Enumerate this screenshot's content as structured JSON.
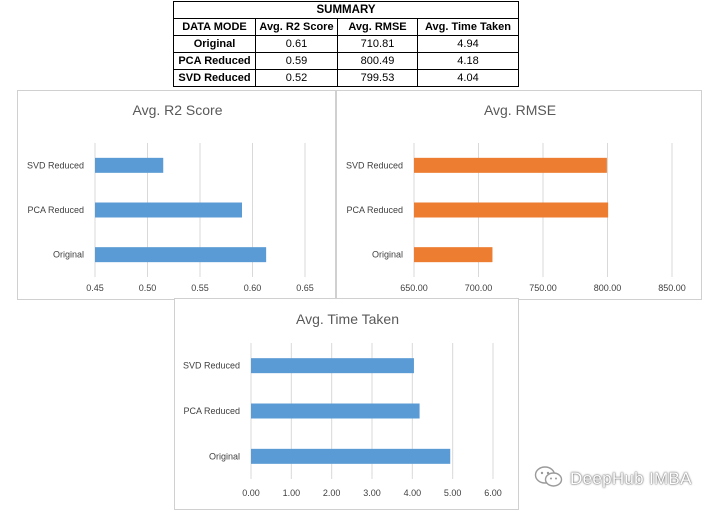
{
  "summary": {
    "title": "SUMMARY",
    "headers": [
      "DATA MODE",
      "Avg. R2 Score",
      "Avg. RMSE",
      "Avg. Time Taken"
    ],
    "rows": [
      [
        "Original",
        "0.61",
        "710.81",
        "4.94"
      ],
      [
        "PCA Reduced",
        "0.59",
        "800.49",
        "4.18"
      ],
      [
        "SVD Reduced",
        "0.52",
        "799.53",
        "4.04"
      ]
    ]
  },
  "chart_data": [
    {
      "id": "r2",
      "type": "bar",
      "orientation": "horizontal",
      "title": "Avg. R2 Score",
      "categories": [
        "SVD Reduced",
        "PCA Reduced",
        "Original"
      ],
      "values": [
        0.515,
        0.59,
        0.613
      ],
      "xlim": [
        0.45,
        0.65
      ],
      "ticks": [
        "0.45",
        "0.50",
        "0.55",
        "0.60",
        "0.65"
      ],
      "color": "#5b9bd5",
      "grid": true
    },
    {
      "id": "rmse",
      "type": "bar",
      "orientation": "horizontal",
      "title": "Avg. RMSE",
      "categories": [
        "SVD Reduced",
        "PCA Reduced",
        "Original"
      ],
      "values": [
        799.53,
        800.49,
        710.81
      ],
      "xlim": [
        650,
        850
      ],
      "ticks": [
        "650.00",
        "700.00",
        "750.00",
        "800.00",
        "850.00"
      ],
      "color": "#ed7d31",
      "grid": true
    },
    {
      "id": "time",
      "type": "bar",
      "orientation": "horizontal",
      "title": "Avg. Time Taken",
      "categories": [
        "SVD Reduced",
        "PCA Reduced",
        "Original"
      ],
      "values": [
        4.04,
        4.18,
        4.94
      ],
      "xlim": [
        0,
        6
      ],
      "ticks": [
        "0.00",
        "1.00",
        "2.00",
        "3.00",
        "4.00",
        "5.00",
        "6.00"
      ],
      "color": "#5b9bd5",
      "grid": true
    }
  ],
  "watermark": {
    "text": "DeepHub IMBA",
    "icon": "wechat-icon"
  }
}
